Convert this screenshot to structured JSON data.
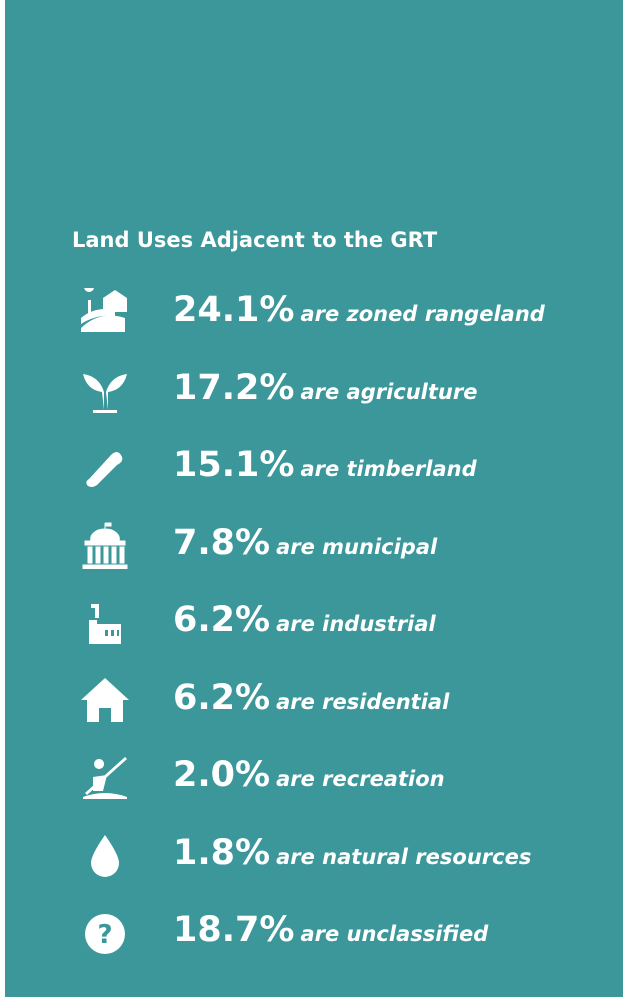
{
  "title": "Land Uses Adjacent to the GRT",
  "items": [
    {
      "value": "24.1%",
      "label": "are zoned rangeland"
    },
    {
      "value": "17.2%",
      "label": "are agriculture"
    },
    {
      "value": "15.1%",
      "label": "are timberland"
    },
    {
      "value": "7.8%",
      "label": "are municipal"
    },
    {
      "value": "6.2%",
      "label": "are industrial"
    },
    {
      "value": "6.2%",
      "label": "are residential"
    },
    {
      "value": "2.0%",
      "label": "are recreation"
    },
    {
      "value": "1.8%",
      "label": "are natural resources"
    },
    {
      "value": "18.7%",
      "label": "are unclassified"
    }
  ]
}
